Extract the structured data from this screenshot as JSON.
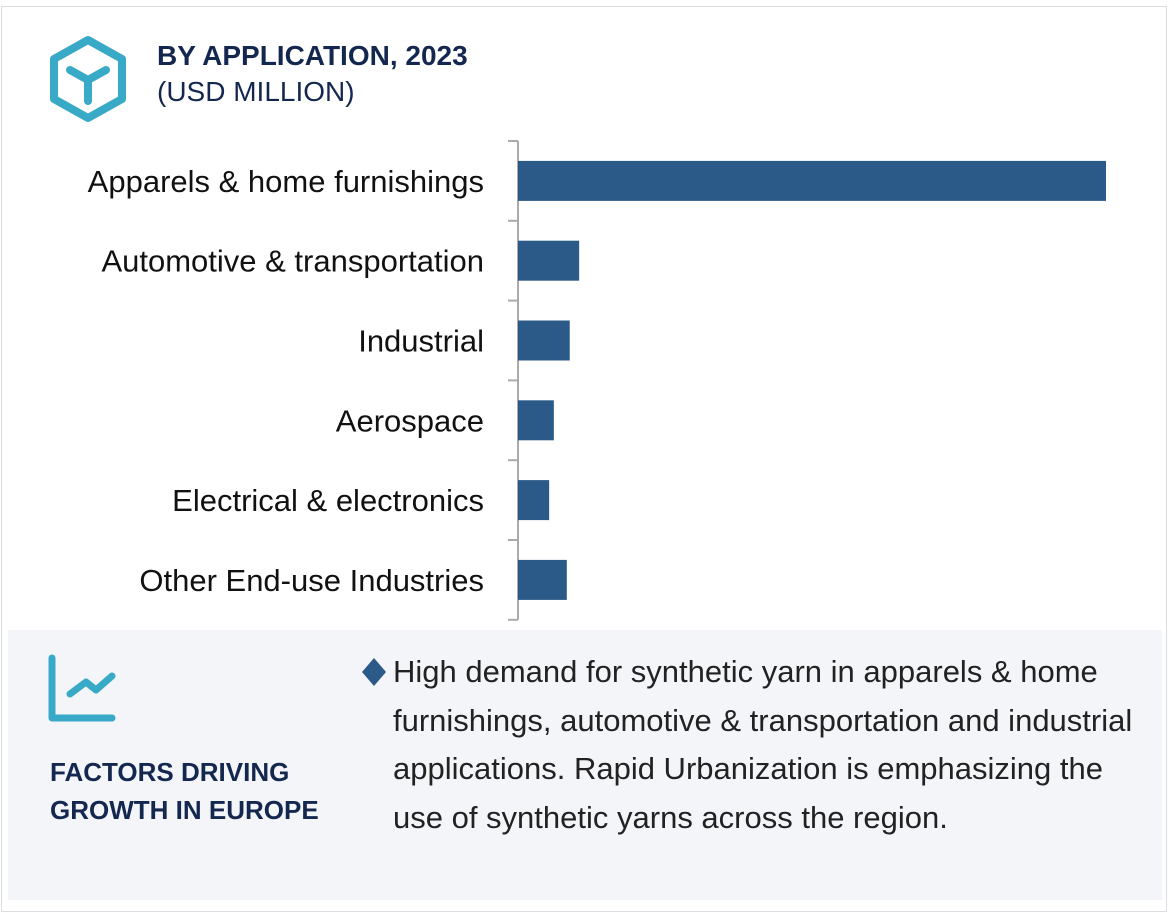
{
  "header": {
    "title": "BY APPLICATION, 2023",
    "subtitle": "(USD MILLION)",
    "icon": "hexagon-y-icon"
  },
  "chart_data": {
    "type": "bar",
    "orientation": "horizontal",
    "title": "BY APPLICATION, 2023",
    "subtitle": "(USD MILLION)",
    "categories": [
      "Apparels & home furnishings",
      "Automotive & transportation",
      "Industrial",
      "Aerospace",
      "Electrical & electronics",
      "Other End-use Industries"
    ],
    "values": [
      100,
      10.4,
      8.8,
      6.1,
      5.3,
      8.3
    ],
    "xlim": [
      0,
      100
    ],
    "grid": false,
    "bar_color": "#2c5a88"
  },
  "factors": {
    "icon": "line-chart-icon",
    "heading": "FACTORS DRIVING GROWTH IN EUROPE",
    "bullet_icon": "diamond-bullet-icon",
    "text": "High demand for synthetic yarn in apparels & home furnishings, automotive & transportation and industrial applications. Rapid Urbanization is emphasizing the use of  synthetic yarns across the region."
  },
  "colors": {
    "accent": "#38a9c7",
    "title": "#14284f",
    "panel_bg": "#f3f5f9"
  }
}
